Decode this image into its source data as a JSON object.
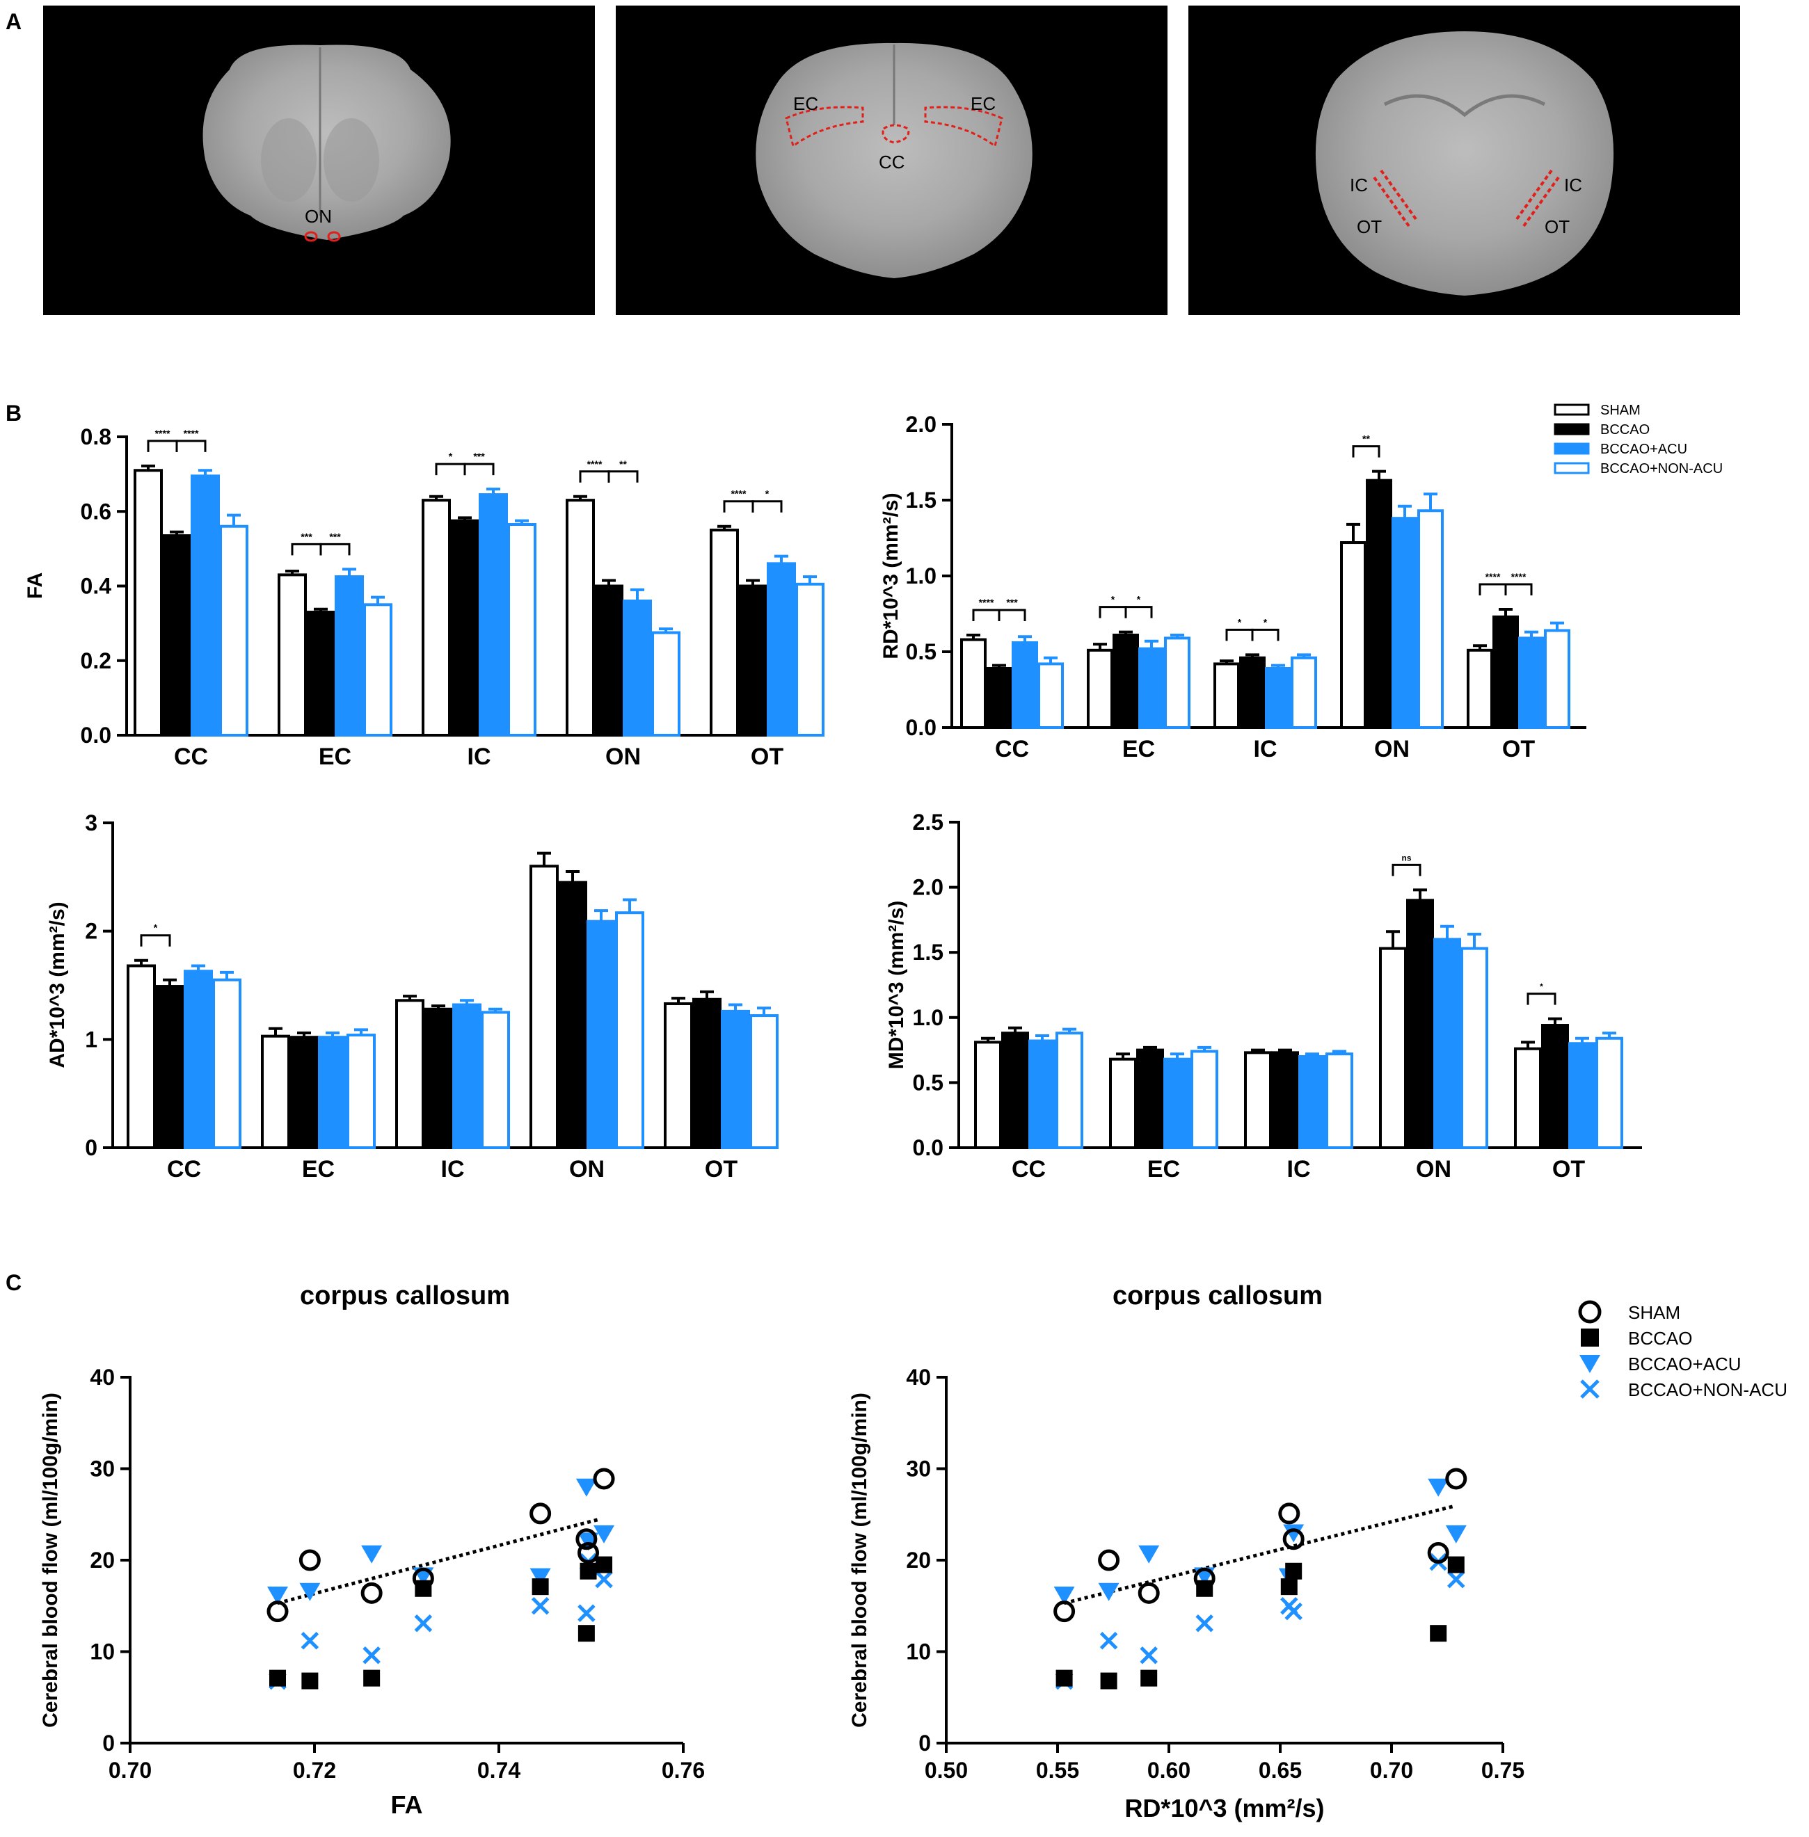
{
  "colors": {
    "sham": "#ffffff",
    "bccao": "#000000",
    "acu": "#1e90ff",
    "nonacu": "#ffffff",
    "blue": "#1e90ff",
    "brain_bg": "#000000",
    "trace": "#e0201a"
  },
  "panels": {
    "a": "A",
    "b": "B",
    "c": "C"
  },
  "brain_images": [
    {
      "labels": [
        "ON"
      ]
    },
    {
      "labels": [
        "EC",
        "EC",
        "CC"
      ]
    },
    {
      "labels": [
        "IC",
        "IC",
        "OT",
        "OT"
      ]
    }
  ],
  "legend_b": [
    "SHAM",
    "BCCAO",
    "BCCAO+ACU",
    "BCCAO+NON-ACU"
  ],
  "legend_c": [
    "SHAM",
    "BCCAO",
    "BCCAO+ACU",
    "BCCAO+NON-ACU"
  ],
  "chart_data": [
    {
      "type": "bar",
      "ylabel": "FA",
      "ylim": [
        0,
        0.8
      ],
      "yticks": [
        0.0,
        0.2,
        0.4,
        0.6,
        0.8
      ],
      "ytick_labels": [
        "0.0",
        "0.2",
        "0.4",
        "0.6",
        "0.8"
      ],
      "categories": [
        "CC",
        "EC",
        "IC",
        "ON",
        "OT"
      ],
      "series": [
        {
          "name": "SHAM",
          "values": [
            0.71,
            0.43,
            0.63,
            0.63,
            0.55
          ],
          "errors": [
            0.012,
            0.01,
            0.01,
            0.01,
            0.01
          ]
        },
        {
          "name": "BCCAO",
          "values": [
            0.535,
            0.33,
            0.575,
            0.4,
            0.4
          ],
          "errors": [
            0.01,
            0.008,
            0.008,
            0.015,
            0.015
          ]
        },
        {
          "name": "BCCAO+ACU",
          "values": [
            0.695,
            0.425,
            0.645,
            0.36,
            0.46
          ],
          "errors": [
            0.015,
            0.02,
            0.015,
            0.03,
            0.02
          ]
        },
        {
          "name": "BCCAO+NON-ACU",
          "values": [
            0.56,
            0.35,
            0.565,
            0.275,
            0.405
          ],
          "errors": [
            0.03,
            0.02,
            0.01,
            0.01,
            0.02
          ]
        }
      ],
      "significance": [
        {
          "cat": "CC",
          "pair": [
            0,
            1
          ],
          "label": "****"
        },
        {
          "cat": "CC",
          "pair": [
            1,
            2
          ],
          "label": "****"
        },
        {
          "cat": "EC",
          "pair": [
            0,
            1
          ],
          "label": "***"
        },
        {
          "cat": "EC",
          "pair": [
            1,
            2
          ],
          "label": "***"
        },
        {
          "cat": "IC",
          "pair": [
            0,
            1
          ],
          "label": "*"
        },
        {
          "cat": "IC",
          "pair": [
            1,
            2
          ],
          "label": "***"
        },
        {
          "cat": "ON",
          "pair": [
            0,
            1
          ],
          "label": "****"
        },
        {
          "cat": "ON",
          "pair": [
            1,
            2
          ],
          "label": "**"
        },
        {
          "cat": "OT",
          "pair": [
            0,
            1
          ],
          "label": "****"
        },
        {
          "cat": "OT",
          "pair": [
            1,
            2
          ],
          "label": "*"
        }
      ]
    },
    {
      "type": "bar",
      "ylabel": "RD*10^3 (mm²/s)",
      "ylim": [
        0,
        2.0
      ],
      "yticks": [
        0.0,
        0.5,
        1.0,
        1.5,
        2.0
      ],
      "ytick_labels": [
        "0.0",
        "0.5",
        "1.0",
        "1.5",
        "2.0"
      ],
      "categories": [
        "CC",
        "EC",
        "IC",
        "ON",
        "OT"
      ],
      "series": [
        {
          "name": "SHAM",
          "values": [
            0.58,
            0.51,
            0.42,
            1.22,
            0.51
          ],
          "errors": [
            0.03,
            0.04,
            0.02,
            0.12,
            0.03
          ]
        },
        {
          "name": "BCCAO",
          "values": [
            0.39,
            0.61,
            0.46,
            1.63,
            0.73
          ],
          "errors": [
            0.02,
            0.02,
            0.02,
            0.06,
            0.05
          ]
        },
        {
          "name": "BCCAO+ACU",
          "values": [
            0.56,
            0.52,
            0.39,
            1.38,
            0.59
          ],
          "errors": [
            0.04,
            0.05,
            0.02,
            0.08,
            0.04
          ]
        },
        {
          "name": "BCCAO+NON-ACU",
          "values": [
            0.42,
            0.59,
            0.46,
            1.43,
            0.64
          ],
          "errors": [
            0.04,
            0.02,
            0.02,
            0.11,
            0.05
          ]
        }
      ],
      "significance": [
        {
          "cat": "CC",
          "pair": [
            0,
            1
          ],
          "label": "****"
        },
        {
          "cat": "CC",
          "pair": [
            1,
            2
          ],
          "label": "***"
        },
        {
          "cat": "EC",
          "pair": [
            0,
            1
          ],
          "label": "*"
        },
        {
          "cat": "EC",
          "pair": [
            1,
            2
          ],
          "label": "*"
        },
        {
          "cat": "IC",
          "pair": [
            0,
            1
          ],
          "label": "*"
        },
        {
          "cat": "IC",
          "pair": [
            1,
            2
          ],
          "label": "*"
        },
        {
          "cat": "ON",
          "pair": [
            0,
            1
          ],
          "label": "**"
        },
        {
          "cat": "OT",
          "pair": [
            0,
            1
          ],
          "label": "****"
        },
        {
          "cat": "OT",
          "pair": [
            1,
            2
          ],
          "label": "****"
        }
      ]
    },
    {
      "type": "bar",
      "ylabel": "AD*10^3 (mm²/s)",
      "ylim": [
        0,
        3
      ],
      "yticks": [
        0,
        1,
        2,
        3
      ],
      "ytick_labels": [
        "0",
        "1",
        "2",
        "3"
      ],
      "categories": [
        "CC",
        "EC",
        "IC",
        "ON",
        "OT"
      ],
      "series": [
        {
          "name": "SHAM",
          "values": [
            1.68,
            1.03,
            1.36,
            2.6,
            1.33
          ],
          "errors": [
            0.05,
            0.07,
            0.04,
            0.12,
            0.05
          ]
        },
        {
          "name": "BCCAO",
          "values": [
            1.49,
            1.02,
            1.28,
            2.45,
            1.37
          ],
          "errors": [
            0.06,
            0.04,
            0.03,
            0.1,
            0.07
          ]
        },
        {
          "name": "BCCAO+ACU",
          "values": [
            1.63,
            1.02,
            1.32,
            2.09,
            1.26
          ],
          "errors": [
            0.05,
            0.04,
            0.04,
            0.1,
            0.06
          ]
        },
        {
          "name": "BCCAO+NON-ACU",
          "values": [
            1.55,
            1.04,
            1.25,
            2.17,
            1.22
          ],
          "errors": [
            0.07,
            0.05,
            0.03,
            0.12,
            0.07
          ]
        }
      ],
      "significance": [
        {
          "cat": "CC",
          "pair": [
            0,
            1
          ],
          "label": "*"
        }
      ]
    },
    {
      "type": "bar",
      "ylabel": "MD*10^3 (mm²/s)",
      "ylim": [
        0,
        2.5
      ],
      "yticks": [
        0.0,
        0.5,
        1.0,
        1.5,
        2.0,
        2.5
      ],
      "ytick_labels": [
        "0.0",
        "0.5",
        "1.0",
        "1.5",
        "2.0",
        "2.5"
      ],
      "categories": [
        "CC",
        "EC",
        "IC",
        "ON",
        "OT"
      ],
      "series": [
        {
          "name": "SHAM",
          "values": [
            0.81,
            0.68,
            0.73,
            1.53,
            0.76
          ],
          "errors": [
            0.03,
            0.04,
            0.02,
            0.13,
            0.05
          ]
        },
        {
          "name": "BCCAO",
          "values": [
            0.88,
            0.75,
            0.73,
            1.9,
            0.94
          ],
          "errors": [
            0.04,
            0.02,
            0.02,
            0.08,
            0.05
          ]
        },
        {
          "name": "BCCAO+ACU",
          "values": [
            0.82,
            0.68,
            0.7,
            1.6,
            0.8
          ],
          "errors": [
            0.04,
            0.04,
            0.02,
            0.1,
            0.04
          ]
        },
        {
          "name": "BCCAO+NON-ACU",
          "values": [
            0.88,
            0.74,
            0.72,
            1.53,
            0.84
          ],
          "errors": [
            0.03,
            0.03,
            0.02,
            0.11,
            0.04
          ]
        }
      ],
      "significance": [
        {
          "cat": "ON",
          "pair": [
            0,
            1
          ],
          "label": "ns"
        },
        {
          "cat": "OT",
          "pair": [
            0,
            1
          ],
          "label": "*"
        }
      ]
    },
    {
      "type": "scatter",
      "title": "corpus callosum",
      "xlabel": "FA",
      "ylabel": "Cerebral blood flow (ml/100g/min)",
      "xlim": [
        0.7,
        0.76
      ],
      "ylim": [
        0,
        40
      ],
      "xticks": [
        0.7,
        0.72,
        0.74,
        0.76
      ],
      "xtick_labels": [
        "0.70",
        "0.72",
        "0.74",
        "0.76"
      ],
      "yticks": [
        0,
        10,
        20,
        30,
        40
      ],
      "ytick_labels": [
        "0",
        "10",
        "20",
        "30",
        "40"
      ],
      "trendline": {
        "x": [
          0.716,
          0.751
        ],
        "y": [
          15.3,
          24.5
        ]
      },
      "series": [
        {
          "name": "SHAM",
          "x": [
            0.716,
            0.7195,
            0.7262,
            0.7318,
            0.7445,
            0.7495,
            0.7497,
            0.7514
          ],
          "y": [
            14.4,
            20.0,
            16.4,
            18.0,
            25.1,
            22.3,
            20.8,
            28.9
          ]
        },
        {
          "name": "BCCAO",
          "x": [
            0.716,
            0.7195,
            0.7262,
            0.7318,
            0.7445,
            0.7495,
            0.7497,
            0.7514
          ],
          "y": [
            7.1,
            6.8,
            7.1,
            16.9,
            17.1,
            12.0,
            18.8,
            19.5
          ]
        },
        {
          "name": "BCCAO+ACU",
          "x": [
            0.716,
            0.7195,
            0.7262,
            0.7318,
            0.7445,
            0.7495,
            0.7497,
            0.7514
          ],
          "y": [
            16.2,
            16.6,
            20.7,
            18.3,
            18.2,
            28.0,
            22.1,
            22.9
          ]
        },
        {
          "name": "BCCAO+NON-ACU",
          "x": [
            0.716,
            0.7195,
            0.7262,
            0.7318,
            0.7445,
            0.7495,
            0.7497,
            0.7514
          ],
          "y": [
            6.8,
            11.2,
            9.6,
            13.1,
            15.0,
            14.2,
            19.8,
            17.9
          ]
        }
      ]
    },
    {
      "type": "scatter",
      "title": "corpus callosum",
      "xlabel": "RD*10^3 (mm²/s)",
      "ylabel": "Cerebral blood flow (ml/100g/min)",
      "xlim": [
        0.5,
        0.75
      ],
      "ylim": [
        0,
        40
      ],
      "xticks": [
        0.5,
        0.55,
        0.6,
        0.65,
        0.7,
        0.75
      ],
      "xtick_labels": [
        "0.50",
        "0.55",
        "0.60",
        "0.65",
        "0.70",
        "0.75"
      ],
      "yticks": [
        0,
        10,
        20,
        30,
        40
      ],
      "ytick_labels": [
        "0",
        "10",
        "20",
        "30",
        "40"
      ],
      "trendline": {
        "x": [
          0.553,
          0.728
        ],
        "y": [
          15.3,
          25.9
        ]
      },
      "series": [
        {
          "name": "SHAM",
          "x": [
            0.553,
            0.573,
            0.591,
            0.616,
            0.654,
            0.656,
            0.721,
            0.729
          ],
          "y": [
            14.4,
            20.0,
            16.4,
            18.0,
            25.1,
            22.3,
            20.8,
            28.9
          ]
        },
        {
          "name": "BCCAO",
          "x": [
            0.553,
            0.573,
            0.591,
            0.616,
            0.654,
            0.656,
            0.721,
            0.729
          ],
          "y": [
            7.1,
            6.8,
            7.1,
            16.9,
            17.1,
            18.8,
            12.0,
            19.5
          ]
        },
        {
          "name": "BCCAO+ACU",
          "x": [
            0.553,
            0.573,
            0.591,
            0.616,
            0.654,
            0.656,
            0.721,
            0.729
          ],
          "y": [
            16.2,
            16.6,
            20.7,
            18.3,
            18.2,
            23.0,
            28.0,
            22.9
          ]
        },
        {
          "name": "BCCAO+NON-ACU",
          "x": [
            0.553,
            0.573,
            0.591,
            0.616,
            0.654,
            0.656,
            0.721,
            0.729
          ],
          "y": [
            6.8,
            11.2,
            9.6,
            13.1,
            15.0,
            14.4,
            19.8,
            17.9
          ]
        }
      ]
    }
  ]
}
